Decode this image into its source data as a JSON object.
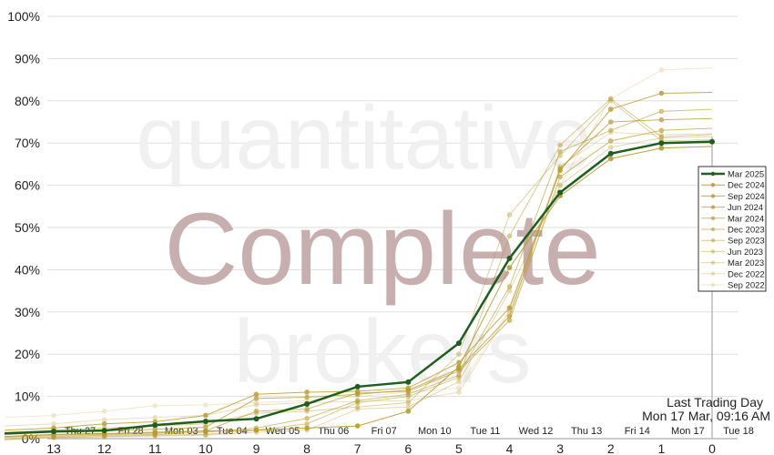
{
  "chart_data": {
    "type": "line",
    "x": [
      13,
      12,
      11,
      10,
      9,
      8,
      7,
      6,
      5,
      4,
      3,
      2,
      1,
      0
    ],
    "date_labels": [
      "Thu 27",
      "Fri 28",
      "Mon 03",
      "Tue 04",
      "Wed 05",
      "Thu 06",
      "Fri 07",
      "Mon 10",
      "Tue 11",
      "Wed 12",
      "Thu 13",
      "Fri 14",
      "Mon 17",
      "Tue 18"
    ],
    "ylim": [
      0,
      100
    ],
    "yticks": [
      "0%",
      "10%",
      "20%",
      "30%",
      "40%",
      "50%",
      "60%",
      "70%",
      "80%",
      "90%",
      "100%"
    ],
    "grid": true,
    "legend_position": "right",
    "annotation": {
      "line1": "Last Trading Day",
      "line2": "Mon 17 Mar, 09:16 AM"
    },
    "watermark": {
      "top": "quantitative",
      "middle": "Complete",
      "bottom": "brokers"
    },
    "colors": {
      "current": "#1e5e1e",
      "past": "#b89a2a",
      "watermark_main": "#c8afaf",
      "watermark_faint": "#f0f0f0"
    },
    "series": [
      {
        "name": "Mar 2025",
        "values": [
          1.7,
          1.9,
          3.2,
          4.1,
          4.7,
          8.2,
          12.3,
          13.4,
          22.6,
          42.7,
          58.3,
          67.5,
          70.0,
          70.3
        ]
      },
      {
        "name": "Dec 2024",
        "values": [
          1.0,
          1.2,
          1.5,
          1.8,
          2.0,
          2.5,
          3.0,
          6.5,
          17.0,
          40.5,
          57.5,
          66.3,
          68.8,
          69.2
        ]
      },
      {
        "name": "Sep 2024",
        "values": [
          2.5,
          3.5,
          4.0,
          5.5,
          10.5,
          11.0,
          11.2,
          12.0,
          18.0,
          31.0,
          63.5,
          78.0,
          81.8,
          82.0
        ]
      },
      {
        "name": "Jun 2024",
        "values": [
          1.5,
          1.8,
          2.2,
          2.7,
          9.5,
          9.8,
          10.5,
          11.5,
          16.5,
          29.0,
          64.0,
          75.0,
          75.5,
          75.8
        ]
      },
      {
        "name": "Mar 2024",
        "values": [
          0.8,
          1.0,
          1.3,
          1.8,
          6.5,
          7.0,
          10.8,
          11.2,
          16.0,
          28.0,
          62.0,
          70.5,
          73.0,
          73.5
        ]
      },
      {
        "name": "Dec 2023",
        "values": [
          0.5,
          0.8,
          1.0,
          1.5,
          2.5,
          4.8,
          9.0,
          10.5,
          15.0,
          36.0,
          68.0,
          73.0,
          77.5,
          78.0
        ]
      },
      {
        "name": "Sep 2023",
        "values": [
          0.3,
          0.5,
          0.8,
          1.0,
          2.0,
          3.5,
          8.5,
          10.0,
          14.5,
          48.0,
          69.5,
          80.5,
          71.5,
          72.0
        ]
      },
      {
        "name": "Jun 2023",
        "values": [
          2.0,
          2.5,
          3.0,
          3.5,
          6.0,
          6.5,
          7.5,
          8.5,
          20.0,
          53.0,
          67.0,
          80.0,
          70.5,
          70.8
        ]
      },
      {
        "name": "Mar 2023",
        "values": [
          0.2,
          0.4,
          0.6,
          0.8,
          1.5,
          2.0,
          7.0,
          7.5,
          13.5,
          35.0,
          60.0,
          69.0,
          71.2,
          71.5
        ]
      },
      {
        "name": "Dec 2022",
        "values": [
          3.5,
          4.5,
          5.0,
          5.5,
          8.0,
          8.5,
          8.8,
          9.0,
          11.0,
          30.0,
          64.5,
          72.5,
          72.0,
          72.2
        ]
      },
      {
        "name": "Sep 2022",
        "values": [
          5.5,
          6.5,
          7.8,
          8.0,
          8.5,
          9.0,
          10.0,
          11.0,
          12.0,
          30.5,
          60.0,
          80.5,
          87.3,
          87.8
        ]
      }
    ]
  }
}
